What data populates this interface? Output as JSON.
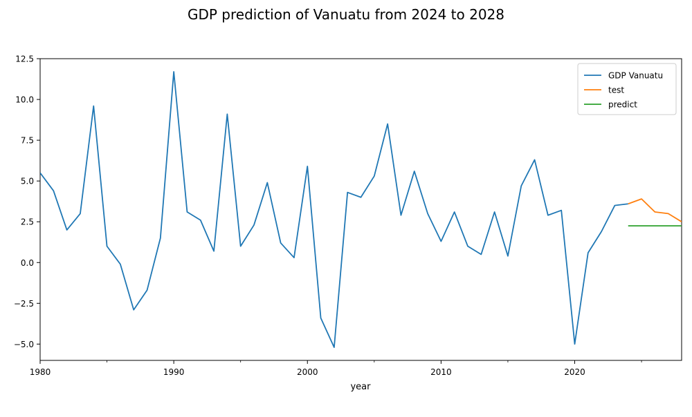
{
  "chart_data": {
    "type": "line",
    "title": "GDP prediction of Vanuatu from 2024 to 2028",
    "xlabel": "year",
    "ylabel": "",
    "xlim": [
      1980,
      2028
    ],
    "ylim": [
      -6.0,
      12.5
    ],
    "x_ticks": [
      1980,
      1990,
      2000,
      2010,
      2020
    ],
    "y_ticks": [
      -5.0,
      -2.5,
      0.0,
      2.5,
      5.0,
      7.5,
      10.0,
      12.5
    ],
    "x_tick_labels": [
      "1980",
      "1990",
      "2000",
      "2010",
      "2020"
    ],
    "y_tick_labels": [
      "−5.0",
      "−2.5",
      "0.0",
      "2.5",
      "5.0",
      "7.5",
      "10.0",
      "12.5"
    ],
    "grid": false,
    "legend_position": "top-right",
    "series": [
      {
        "name": "GDP Vanuatu",
        "color": "#1f77b4",
        "x": [
          1980,
          1981,
          1982,
          1983,
          1984,
          1985,
          1986,
          1987,
          1988,
          1989,
          1990,
          1991,
          1992,
          1993,
          1994,
          1995,
          1996,
          1997,
          1998,
          1999,
          2000,
          2001,
          2002,
          2003,
          2004,
          2005,
          2006,
          2007,
          2008,
          2009,
          2010,
          2011,
          2012,
          2013,
          2014,
          2015,
          2016,
          2017,
          2018,
          2019,
          2020,
          2021,
          2022,
          2023,
          2024
        ],
        "values": [
          5.5,
          4.4,
          2.0,
          3.0,
          9.6,
          1.0,
          -0.1,
          -2.9,
          -1.7,
          1.5,
          11.7,
          3.1,
          2.6,
          0.7,
          9.1,
          1.0,
          2.3,
          4.9,
          1.2,
          0.3,
          5.9,
          -3.4,
          -5.2,
          4.3,
          4.0,
          5.3,
          8.5,
          2.9,
          5.6,
          3.0,
          1.3,
          3.1,
          1.0,
          0.5,
          3.1,
          0.4,
          4.7,
          6.3,
          2.9,
          3.2,
          -5.0,
          0.6,
          1.9,
          3.5,
          3.6
        ]
      },
      {
        "name": "test",
        "color": "#ff7f0e",
        "x": [
          2024,
          2025,
          2026,
          2027,
          2028
        ],
        "values": [
          3.6,
          3.9,
          3.1,
          3.0,
          2.5
        ]
      },
      {
        "name": "predict",
        "color": "#2ca02c",
        "x": [
          2024,
          2025,
          2026,
          2027,
          2028
        ],
        "values": [
          2.25,
          2.25,
          2.25,
          2.25,
          2.25
        ]
      }
    ]
  }
}
